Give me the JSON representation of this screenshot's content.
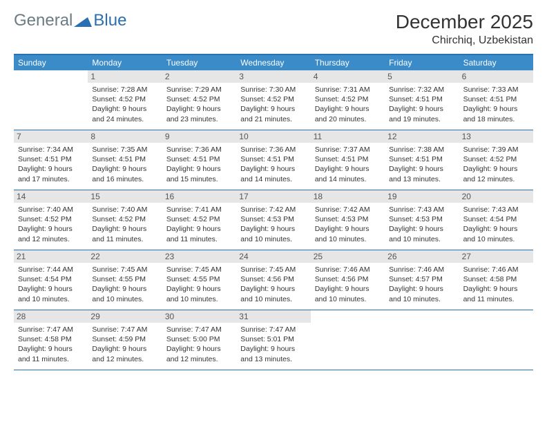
{
  "brand": {
    "part1": "General",
    "part2": "Blue",
    "shape_color": "#2a6fb0"
  },
  "title": "December 2025",
  "location": "Chirchiq, Uzbekistan",
  "colors": {
    "header_bg": "#3b8bc9",
    "border": "#2a6fb0",
    "daynum_bg": "#e6e6e6",
    "text": "#333333",
    "brand_grey": "#6b7b84"
  },
  "dow": [
    "Sunday",
    "Monday",
    "Tuesday",
    "Wednesday",
    "Thursday",
    "Friday",
    "Saturday"
  ],
  "weeks": [
    [
      null,
      {
        "n": "1",
        "sr": "7:28 AM",
        "ss": "4:52 PM",
        "dl": "9 hours and 24 minutes."
      },
      {
        "n": "2",
        "sr": "7:29 AM",
        "ss": "4:52 PM",
        "dl": "9 hours and 23 minutes."
      },
      {
        "n": "3",
        "sr": "7:30 AM",
        "ss": "4:52 PM",
        "dl": "9 hours and 21 minutes."
      },
      {
        "n": "4",
        "sr": "7:31 AM",
        "ss": "4:52 PM",
        "dl": "9 hours and 20 minutes."
      },
      {
        "n": "5",
        "sr": "7:32 AM",
        "ss": "4:51 PM",
        "dl": "9 hours and 19 minutes."
      },
      {
        "n": "6",
        "sr": "7:33 AM",
        "ss": "4:51 PM",
        "dl": "9 hours and 18 minutes."
      }
    ],
    [
      {
        "n": "7",
        "sr": "7:34 AM",
        "ss": "4:51 PM",
        "dl": "9 hours and 17 minutes."
      },
      {
        "n": "8",
        "sr": "7:35 AM",
        "ss": "4:51 PM",
        "dl": "9 hours and 16 minutes."
      },
      {
        "n": "9",
        "sr": "7:36 AM",
        "ss": "4:51 PM",
        "dl": "9 hours and 15 minutes."
      },
      {
        "n": "10",
        "sr": "7:36 AM",
        "ss": "4:51 PM",
        "dl": "9 hours and 14 minutes."
      },
      {
        "n": "11",
        "sr": "7:37 AM",
        "ss": "4:51 PM",
        "dl": "9 hours and 14 minutes."
      },
      {
        "n": "12",
        "sr": "7:38 AM",
        "ss": "4:51 PM",
        "dl": "9 hours and 13 minutes."
      },
      {
        "n": "13",
        "sr": "7:39 AM",
        "ss": "4:52 PM",
        "dl": "9 hours and 12 minutes."
      }
    ],
    [
      {
        "n": "14",
        "sr": "7:40 AM",
        "ss": "4:52 PM",
        "dl": "9 hours and 12 minutes."
      },
      {
        "n": "15",
        "sr": "7:40 AM",
        "ss": "4:52 PM",
        "dl": "9 hours and 11 minutes."
      },
      {
        "n": "16",
        "sr": "7:41 AM",
        "ss": "4:52 PM",
        "dl": "9 hours and 11 minutes."
      },
      {
        "n": "17",
        "sr": "7:42 AM",
        "ss": "4:53 PM",
        "dl": "9 hours and 10 minutes."
      },
      {
        "n": "18",
        "sr": "7:42 AM",
        "ss": "4:53 PM",
        "dl": "9 hours and 10 minutes."
      },
      {
        "n": "19",
        "sr": "7:43 AM",
        "ss": "4:53 PM",
        "dl": "9 hours and 10 minutes."
      },
      {
        "n": "20",
        "sr": "7:43 AM",
        "ss": "4:54 PM",
        "dl": "9 hours and 10 minutes."
      }
    ],
    [
      {
        "n": "21",
        "sr": "7:44 AM",
        "ss": "4:54 PM",
        "dl": "9 hours and 10 minutes."
      },
      {
        "n": "22",
        "sr": "7:45 AM",
        "ss": "4:55 PM",
        "dl": "9 hours and 10 minutes."
      },
      {
        "n": "23",
        "sr": "7:45 AM",
        "ss": "4:55 PM",
        "dl": "9 hours and 10 minutes."
      },
      {
        "n": "24",
        "sr": "7:45 AM",
        "ss": "4:56 PM",
        "dl": "9 hours and 10 minutes."
      },
      {
        "n": "25",
        "sr": "7:46 AM",
        "ss": "4:56 PM",
        "dl": "9 hours and 10 minutes."
      },
      {
        "n": "26",
        "sr": "7:46 AM",
        "ss": "4:57 PM",
        "dl": "9 hours and 10 minutes."
      },
      {
        "n": "27",
        "sr": "7:46 AM",
        "ss": "4:58 PM",
        "dl": "9 hours and 11 minutes."
      }
    ],
    [
      {
        "n": "28",
        "sr": "7:47 AM",
        "ss": "4:58 PM",
        "dl": "9 hours and 11 minutes."
      },
      {
        "n": "29",
        "sr": "7:47 AM",
        "ss": "4:59 PM",
        "dl": "9 hours and 12 minutes."
      },
      {
        "n": "30",
        "sr": "7:47 AM",
        "ss": "5:00 PM",
        "dl": "9 hours and 12 minutes."
      },
      {
        "n": "31",
        "sr": "7:47 AM",
        "ss": "5:01 PM",
        "dl": "9 hours and 13 minutes."
      },
      null,
      null,
      null
    ]
  ],
  "labels": {
    "sunrise": "Sunrise:",
    "sunset": "Sunset:",
    "daylight": "Daylight:"
  }
}
